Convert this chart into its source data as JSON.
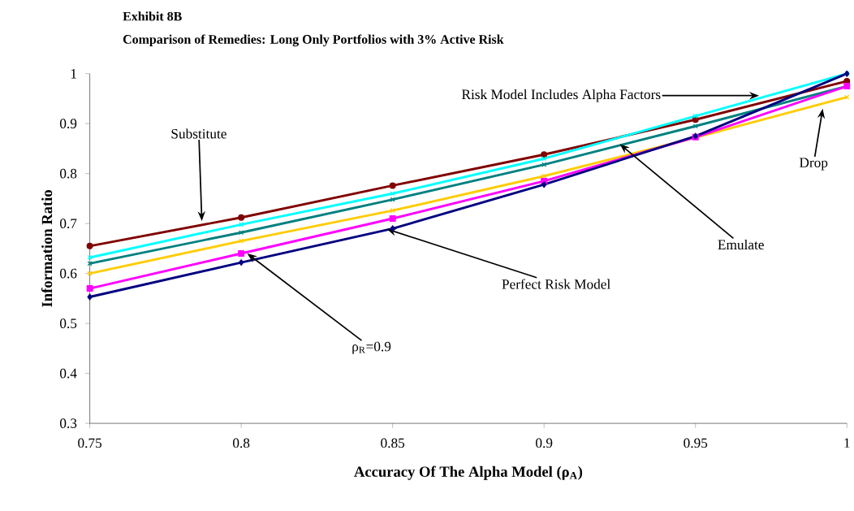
{
  "chart_data": {
    "type": "line",
    "title": "Exhibit 8B",
    "subtitle": "Comparison of Remedies: Long Only Portfolios with 3% Active Risk",
    "xlabel": "Accuracy Of The Alpha Model (ρ$_{A}$)",
    "ylabel": "Information Ratio",
    "x": [
      0.75,
      0.8,
      0.85,
      0.9,
      0.95,
      1.0
    ],
    "series": [
      {
        "color": "#800000",
        "marker": "circle",
        "values": [
          0.655,
          0.712,
          0.776,
          0.838,
          0.908,
          0.985
        ]
      },
      {
        "color": "#00ffff",
        "marker": "cross",
        "values": [
          0.632,
          0.698,
          0.76,
          0.83,
          0.915,
          1.0
        ]
      },
      {
        "color": "#008080",
        "marker": "cross",
        "values": [
          0.62,
          0.682,
          0.748,
          0.818,
          0.895,
          0.975
        ]
      },
      {
        "color": "#ffcc00",
        "marker": "cross",
        "values": [
          0.6,
          0.665,
          0.726,
          0.795,
          0.872,
          0.953
        ]
      },
      {
        "color": "#ff00ff",
        "marker": "square",
        "values": [
          0.57,
          0.64,
          0.71,
          0.785,
          0.873,
          0.975
        ]
      },
      {
        "color": "#000080",
        "marker": "diamond",
        "values": [
          0.553,
          0.622,
          0.69,
          0.778,
          0.875,
          1.0
        ]
      }
    ],
    "annotations": [
      {
        "text": "Substitute",
        "x": 0.787,
        "y": 0.705
      },
      {
        "text": "Risk Model Includes Alpha Factors",
        "x": 0.971,
        "y": 0.956
      },
      {
        "text": "Emulate",
        "x": 0.925,
        "y": 0.859
      },
      {
        "text": "Drop",
        "x": 0.992,
        "y": 0.93
      },
      {
        "text": "ρ$_{R}$=0.9",
        "x": 0.802,
        "y": 0.64
      },
      {
        "text": "Perfect Risk Model",
        "x": 0.848,
        "y": 0.689
      }
    ],
    "xlim": [
      0.75,
      1.0
    ],
    "ylim": [
      0.3,
      1.0
    ],
    "xticks": [
      0.75,
      0.8,
      0.85,
      0.9,
      0.95,
      1
    ],
    "yticks": [
      0.3,
      0.4,
      0.5,
      0.6,
      0.7,
      0.8,
      0.9,
      1
    ],
    "grid": false,
    "legend": false
  }
}
